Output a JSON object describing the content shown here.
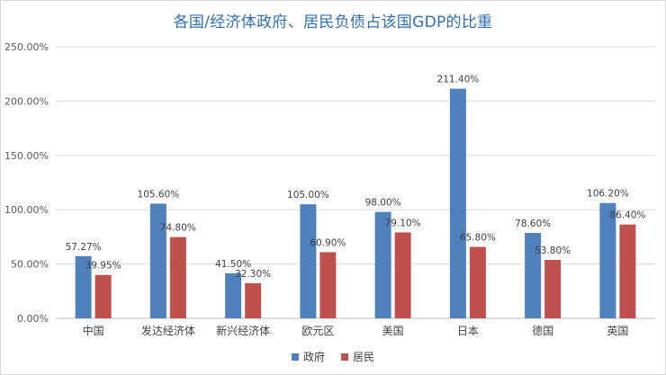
{
  "chart_data": {
    "type": "bar",
    "title": "各国/经济体政府、居民负债占该国GDP的比重",
    "categories": [
      "中国",
      "发达经济体",
      "新兴经济体",
      "欧元区",
      "美国",
      "日本",
      "德国",
      "英国"
    ],
    "series": [
      {
        "name": "政府",
        "color": "#4f81bd",
        "values": [
          57.27,
          105.6,
          41.5,
          105.0,
          98.0,
          211.4,
          78.6,
          106.2
        ],
        "labels": [
          "57.27%",
          "105.60%",
          "41.50%",
          "105.00%",
          "98.00%",
          "211.40%",
          "78.60%",
          "106.20%"
        ]
      },
      {
        "name": "居民",
        "color": "#c0504d",
        "values": [
          39.95,
          74.8,
          32.3,
          60.9,
          79.1,
          65.8,
          53.8,
          86.4
        ],
        "labels": [
          "39.95%",
          "74.80%",
          "32.30%",
          "60.90%",
          "79.10%",
          "65.80%",
          "53.80%",
          "86.40%"
        ]
      }
    ],
    "y_ticks": [
      "0.00%",
      "50.00%",
      "100.00%",
      "150.00%",
      "200.00%",
      "250.00%"
    ],
    "ylim": [
      0,
      250
    ],
    "grid": true,
    "legend": "bottom"
  }
}
